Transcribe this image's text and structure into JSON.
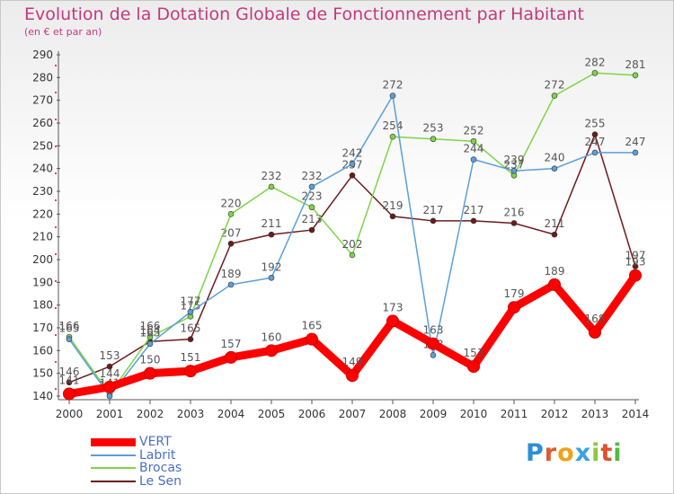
{
  "header": {
    "title": "Evolution de la Dotation Globale de Fonctionnement par Habitant",
    "subtitle": "(en € et par an)"
  },
  "logo": {
    "text": "Proxiti"
  },
  "chart_data": {
    "type": "line",
    "categories": [
      "2000",
      "2001",
      "2002",
      "2003",
      "2004",
      "2005",
      "2006",
      "2007",
      "2008",
      "2009",
      "2010",
      "2011",
      "2012",
      "2013",
      "2014"
    ],
    "ylim": [
      140,
      290
    ],
    "yticks": [
      140,
      150,
      160,
      170,
      180,
      190,
      200,
      210,
      220,
      230,
      240,
      250,
      260,
      270,
      280,
      290
    ],
    "grid": false,
    "legend_position": "bottom-left",
    "series": [
      {
        "name": "Le Sen",
        "color": "#6b1a1a",
        "values": [
          146,
          153,
          164,
          165,
          207,
          211,
          213,
          237,
          219,
          217,
          217,
          216,
          211,
          255,
          197
        ]
      },
      {
        "name": "Brocas",
        "color": "#7ed447",
        "values": [
          166,
          141,
          166,
          175,
          220,
          232,
          223,
          202,
          254,
          253,
          252,
          237,
          272,
          282,
          281
        ]
      },
      {
        "name": "Labrit",
        "color": "#5b9fd8",
        "values": [
          165,
          140,
          163,
          177,
          189,
          192,
          232,
          242,
          272,
          158,
          244,
          239,
          240,
          247,
          247
        ]
      },
      {
        "name": "VERT",
        "color": "#ff0000",
        "values": [
          141,
          144,
          150,
          151,
          157,
          160,
          165,
          149,
          173,
          163,
          153,
          179,
          189,
          168,
          193
        ]
      }
    ],
    "legend": [
      {
        "name": "VERT",
        "color": "#ff0000",
        "width": 9
      },
      {
        "name": "Labrit",
        "color": "#5b9fd8",
        "width": 2
      },
      {
        "name": "Brocas",
        "color": "#7ed447",
        "width": 2
      },
      {
        "name": "Le Sen",
        "color": "#6b1a1a",
        "width": 2
      }
    ]
  }
}
